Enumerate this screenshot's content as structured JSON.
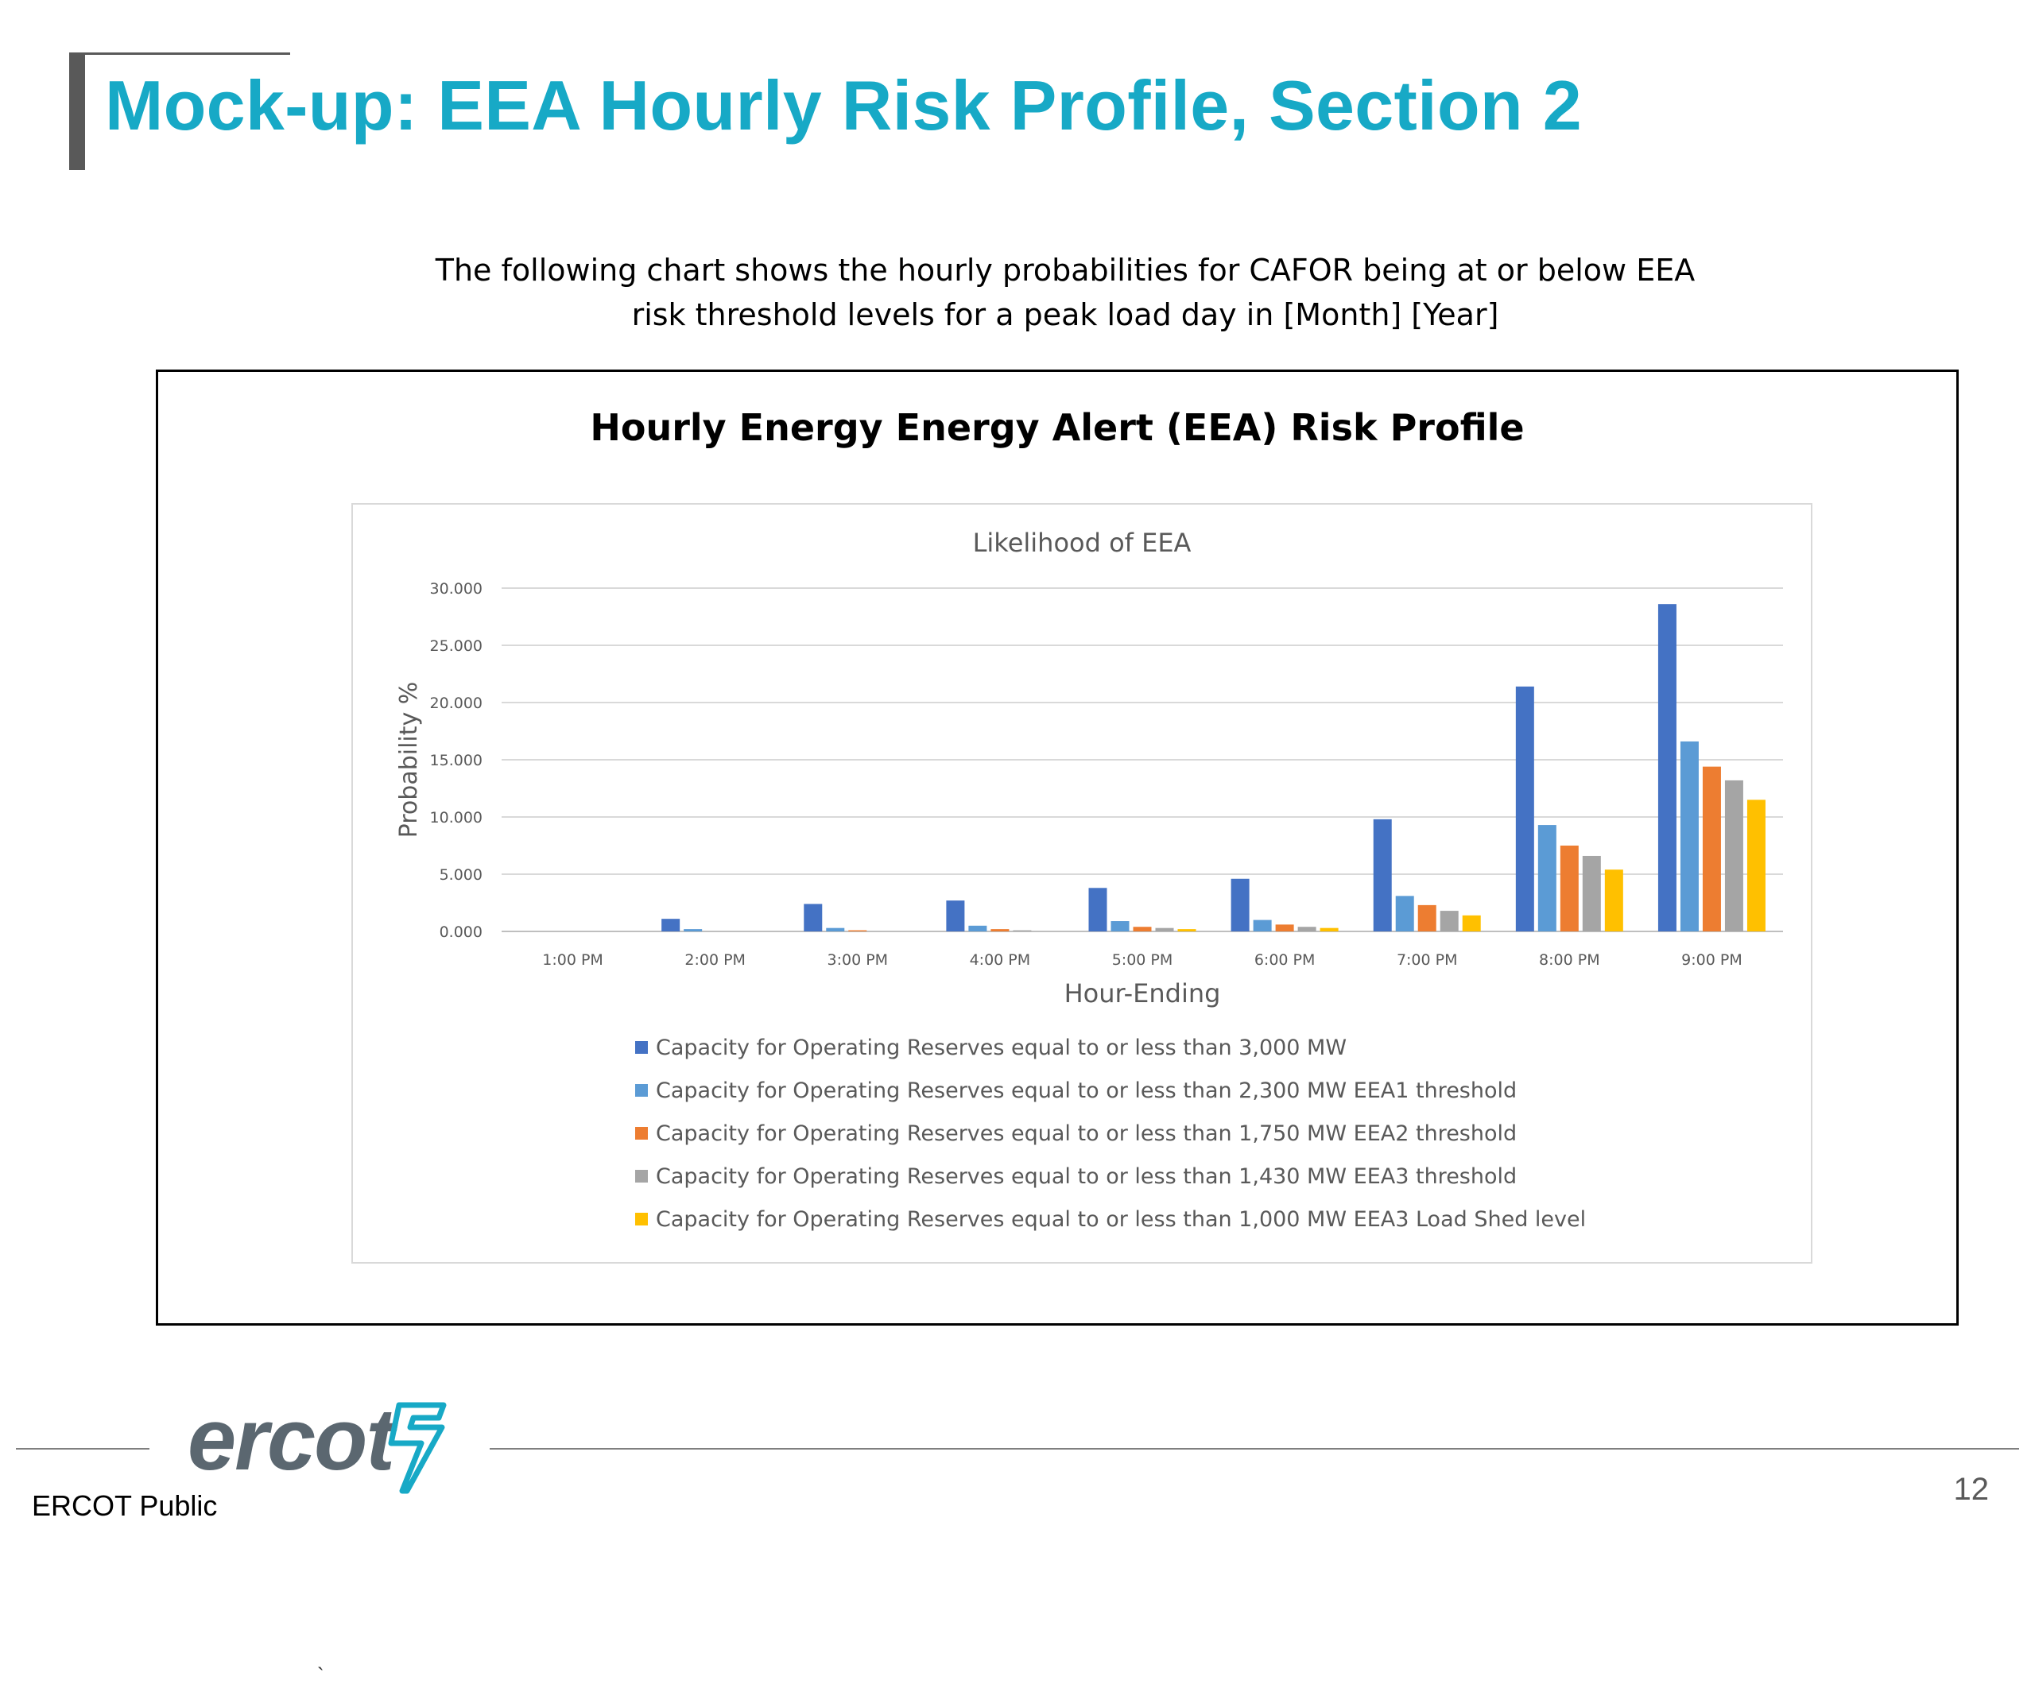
{
  "slide": {
    "title": "Mock-up: EEA Hourly Risk Profile, Section 2",
    "intro_line1": "The following chart shows the hourly probabilities for CAFOR being at or below EEA",
    "intro_line2": "risk threshold levels for a peak load day in [Month] [Year]",
    "stray_mark": "`"
  },
  "footer": {
    "logo_text": "ercot",
    "classification": "ERCOT Public",
    "page_number": "12",
    "logo_color": "#5b6770",
    "logo_mark_color": "#17a9c6"
  },
  "colors": {
    "title": "#17a9c6"
  },
  "chart_data": {
    "type": "bar",
    "outer_title": "Hourly Energy Energy Alert (EEA) Risk Profile",
    "title": "Likelihood of EEA",
    "xlabel": "Hour-Ending",
    "ylabel": "Probability %",
    "ylim": [
      0,
      30
    ],
    "yticks": [
      "0.000",
      "5.000",
      "10.000",
      "15.000",
      "20.000",
      "25.000",
      "30.000"
    ],
    "grid": true,
    "legend_position": "bottom",
    "categories": [
      "1:00 PM",
      "2:00 PM",
      "3:00 PM",
      "4:00 PM",
      "5:00 PM",
      "6:00 PM",
      "7:00 PM",
      "8:00 PM",
      "9:00 PM"
    ],
    "series": [
      {
        "name": "Capacity for Operating Reserves equal to or less than 3,000 MW",
        "color": "#4472c4",
        "values": [
          0,
          1.1,
          2.4,
          2.7,
          3.8,
          4.6,
          9.8,
          21.4,
          28.6
        ]
      },
      {
        "name": "Capacity for Operating Reserves equal to or less than 2,300 MW EEA1 threshold",
        "color": "#5b9bd5",
        "values": [
          0,
          0.2,
          0.3,
          0.5,
          0.9,
          1.0,
          3.1,
          9.3,
          16.6
        ]
      },
      {
        "name": "Capacity for Operating Reserves equal to or less than 1,750 MW EEA2 threshold",
        "color": "#ed7d31",
        "values": [
          0,
          0,
          0.1,
          0.2,
          0.4,
          0.6,
          2.3,
          7.5,
          14.4
        ]
      },
      {
        "name": "Capacity for Operating Reserves equal to or less than 1,430 MW EEA3 threshold",
        "color": "#a5a5a5",
        "values": [
          0,
          0,
          0,
          0.1,
          0.3,
          0.4,
          1.8,
          6.6,
          13.2
        ]
      },
      {
        "name": "Capacity for Operating Reserves equal to or less than 1,000 MW EEA3 Load Shed level",
        "color": "#ffc000",
        "values": [
          0,
          0,
          0,
          0,
          0.2,
          0.3,
          1.4,
          5.4,
          11.5
        ]
      }
    ]
  }
}
